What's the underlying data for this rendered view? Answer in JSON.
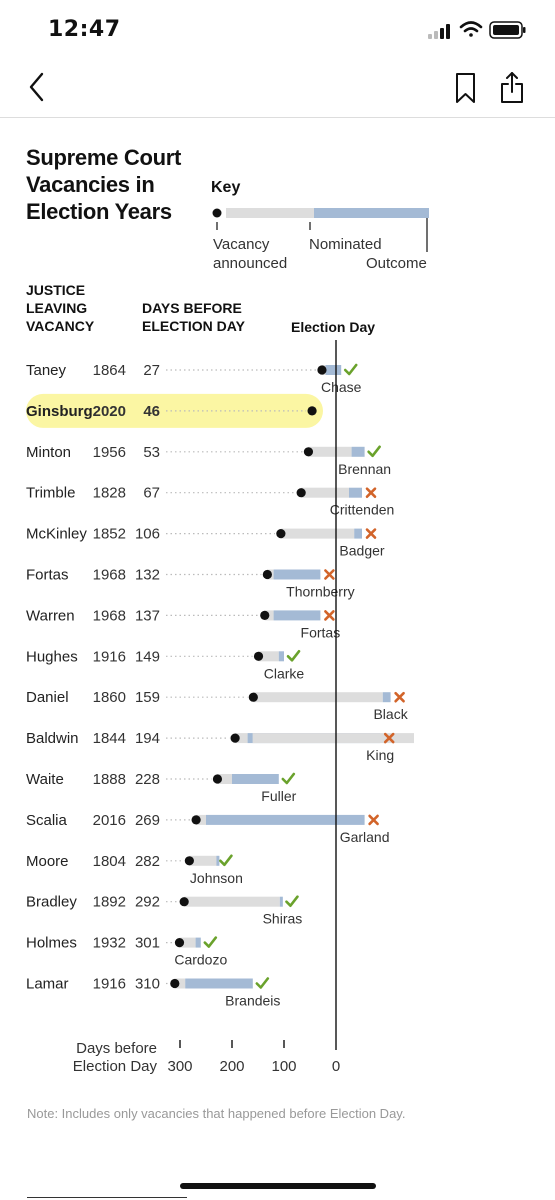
{
  "status_bar": {
    "time": "12:47"
  },
  "nav": {
    "back_icon": "chevron-left-icon",
    "bookmark_icon": "bookmark-icon",
    "share_icon": "share-icon"
  },
  "title": "Supreme Court\nVacancies in\nElection Years",
  "key": {
    "title": "Key",
    "vacancy_label_1": "Vacancy",
    "vacancy_label_2": "announced",
    "nominated_label": "Nominated",
    "outcome_label": "Outcome"
  },
  "headers": {
    "justice": "JUSTICE\nLEAVING\nVACANCY",
    "days": "DAYS BEFORE\nELECTION DAY",
    "election_day": "Election Day"
  },
  "colors": {
    "wait_bar": "#dddddd",
    "nomination_bar": "#a4bad5",
    "confirmed_check": "#6aa22c",
    "rejected_x": "#d2642a",
    "highlight": "#fbf6a3",
    "dot": "#111111"
  },
  "chart_data": {
    "type": "range",
    "title": "Supreme Court Vacancies in Election Years",
    "xlabel": "Days before Election Day",
    "xlim": [
      320,
      -5
    ],
    "x_ticks": [
      300,
      200,
      100,
      0
    ],
    "x_tick_labels": [
      "300",
      "200",
      "100",
      "0"
    ],
    "axis_label_1": "Days before",
    "axis_label_2": "Election Day",
    "marker_label": "Election Day",
    "rows": [
      {
        "justice": "Taney",
        "year": "1864",
        "days": 27,
        "nominated": 20,
        "outcome": -10,
        "result": "confirmed",
        "successor": "Chase"
      },
      {
        "justice": "Ginsburg",
        "year": "2020",
        "days": 46,
        "nominated": null,
        "outcome": null,
        "result": "pending",
        "successor": "",
        "highlight": true
      },
      {
        "justice": "Minton",
        "year": "1956",
        "days": 53,
        "nominated": -30,
        "outcome": -55,
        "result": "confirmed",
        "successor": "Brennan"
      },
      {
        "justice": "Trimble",
        "year": "1828",
        "days": 67,
        "nominated": -25,
        "outcome": -50,
        "result": "rejected",
        "successor": "Crittenden"
      },
      {
        "justice": "McKinley",
        "year": "1852",
        "days": 106,
        "nominated": -35,
        "outcome": -50,
        "result": "rejected",
        "successor": "Badger"
      },
      {
        "justice": "Fortas",
        "year": "1968",
        "days": 132,
        "nominated": 120,
        "outcome": 30,
        "result": "rejected",
        "successor": "Thornberry"
      },
      {
        "justice": "Warren",
        "year": "1968",
        "days": 137,
        "nominated": 120,
        "outcome": 30,
        "result": "rejected",
        "successor": "Fortas"
      },
      {
        "justice": "Hughes",
        "year": "1916",
        "days": 149,
        "nominated": 110,
        "outcome": 100,
        "result": "confirmed",
        "successor": "Clarke"
      },
      {
        "justice": "Daniel",
        "year": "1860",
        "days": 159,
        "nominated": -90,
        "outcome": -105,
        "result": "rejected",
        "successor": "Black"
      },
      {
        "justice": "Baldwin",
        "year": "1844",
        "days": 194,
        "nominated": 170,
        "outcome": -85,
        "result": "rejected",
        "successor": "King",
        "renomination": -150
      },
      {
        "justice": "Waite",
        "year": "1888",
        "days": 228,
        "nominated": 200,
        "outcome": 110,
        "result": "confirmed",
        "successor": "Fuller"
      },
      {
        "justice": "Scalia",
        "year": "2016",
        "days": 269,
        "nominated": 250,
        "outcome": -55,
        "result": "rejected",
        "successor": "Garland"
      },
      {
        "justice": "Moore",
        "year": "1804",
        "days": 282,
        "nominated": 230,
        "outcome": 230,
        "result": "confirmed",
        "successor": "Johnson"
      },
      {
        "justice": "Bradley",
        "year": "1892",
        "days": 292,
        "nominated": 108,
        "outcome": 103,
        "result": "confirmed",
        "successor": "Shiras"
      },
      {
        "justice": "Holmes",
        "year": "1932",
        "days": 301,
        "nominated": 270,
        "outcome": 260,
        "result": "confirmed",
        "successor": "Cardozo"
      },
      {
        "justice": "Lamar",
        "year": "1916",
        "days": 310,
        "nominated": 290,
        "outcome": 160,
        "result": "confirmed",
        "successor": "Brandeis"
      }
    ]
  },
  "note": "Note: Includes only vacancies that happened before Election Day."
}
